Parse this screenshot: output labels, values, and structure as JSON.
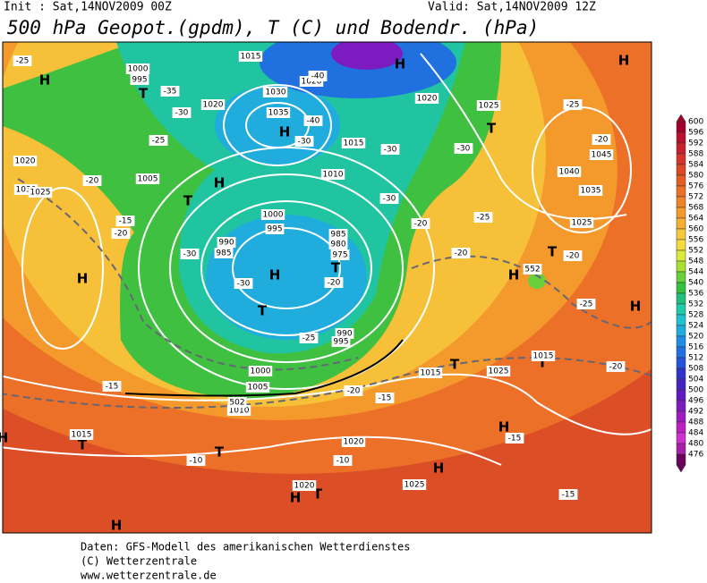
{
  "header": {
    "init": "Init : Sat,14NOV2009 00Z",
    "valid": "Valid: Sat,14NOV2009 12Z",
    "title": "500 hPa Geopot.(gpdm), T (C) und Bodendr. (hPa)"
  },
  "legend": {
    "levels": [
      600,
      596,
      592,
      588,
      584,
      580,
      576,
      572,
      568,
      564,
      560,
      556,
      552,
      548,
      544,
      540,
      536,
      532,
      528,
      524,
      520,
      516,
      512,
      508,
      504,
      500,
      496,
      492,
      488,
      484,
      480,
      476
    ],
    "colors": [
      "#a0002a",
      "#b8102e",
      "#c8202c",
      "#d4342a",
      "#dc4826",
      "#e45c24",
      "#ec7028",
      "#f08428",
      "#f49a2c",
      "#f6b034",
      "#f8c83c",
      "#f4dc40",
      "#dcea3c",
      "#a8e034",
      "#68d03c",
      "#34c040",
      "#20c07c",
      "#20ccac",
      "#20c4d0",
      "#20acdc",
      "#208ce4",
      "#2070e0",
      "#2454d8",
      "#3034c8",
      "#4424c0",
      "#6018c0",
      "#7c1cc0",
      "#9c1cc0",
      "#bc20c0",
      "#d030d0",
      "#a820a8",
      "#6c005c"
    ]
  },
  "map_labels": [
    "H",
    "T",
    "T",
    "H",
    "H",
    "T",
    "T",
    "H",
    "T",
    "H",
    "T",
    "H",
    "H",
    "T",
    "T",
    "H",
    "H",
    "T",
    "H",
    "H",
    "T",
    "T",
    "H",
    "H",
    "H",
    "1000",
    "995",
    "1015",
    "1020",
    "1025",
    "1035",
    "1030",
    "1020",
    "1015",
    "1010",
    "1005",
    "1000",
    "995",
    "990",
    "985",
    "985",
    "980",
    "975",
    "990",
    "995",
    "1000",
    "1005",
    "1010",
    "1015",
    "1020",
    "1025",
    "1030",
    "1040",
    "1045",
    "1035",
    "1025",
    "1025",
    "1015",
    "1020",
    "1020",
    "1025",
    "1020",
    "1025",
    "1015",
    "-25",
    "-35",
    "-30",
    "-25",
    "-20",
    "-20",
    "-30",
    "-40",
    "-40",
    "-30",
    "-30",
    "-30",
    "-30",
    "-25",
    "-25",
    "-20",
    "-20",
    "-20",
    "-20",
    "-15",
    "-10",
    "-10",
    "-15",
    "-15",
    "-20",
    "-25",
    "-20",
    "-15",
    "-15",
    "-30",
    "-25",
    "-20",
    "552",
    "502"
  ],
  "footer": [
    "Daten: GFS-Modell des amerikanischen Wetterdienstes",
    "(C) Wetterzentrale",
    "www.wetterzentrale.de"
  ]
}
